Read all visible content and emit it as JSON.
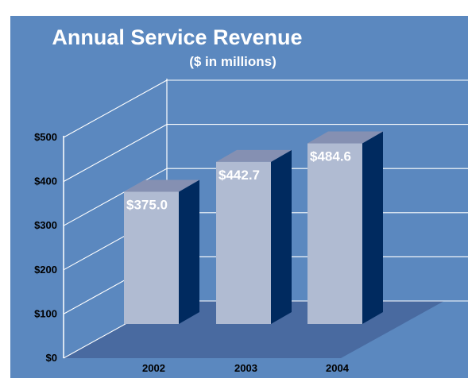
{
  "colors": {
    "background": "#5b88bf",
    "floor": "#496aa0",
    "bar_front": "#b0bbd2",
    "bar_top": "#8590b2",
    "bar_side": "#002a5f",
    "gridline": "#ffffff"
  },
  "chart_data": {
    "type": "bar",
    "title": "Annual Service Revenue",
    "subtitle": "($ in millions)",
    "categories": [
      "2002",
      "2003",
      "2004"
    ],
    "values": [
      375.0,
      442.7,
      484.6
    ],
    "value_labels": [
      "$375.0",
      "$442.7",
      "$484.6"
    ],
    "y_ticks": [
      "$0",
      "$100",
      "$200",
      "$300",
      "$400",
      "$500"
    ],
    "y_tick_values": [
      0,
      100,
      200,
      300,
      400,
      500
    ],
    "ylim": [
      0,
      500
    ],
    "grid": true,
    "legend": "none",
    "three_d": true
  }
}
